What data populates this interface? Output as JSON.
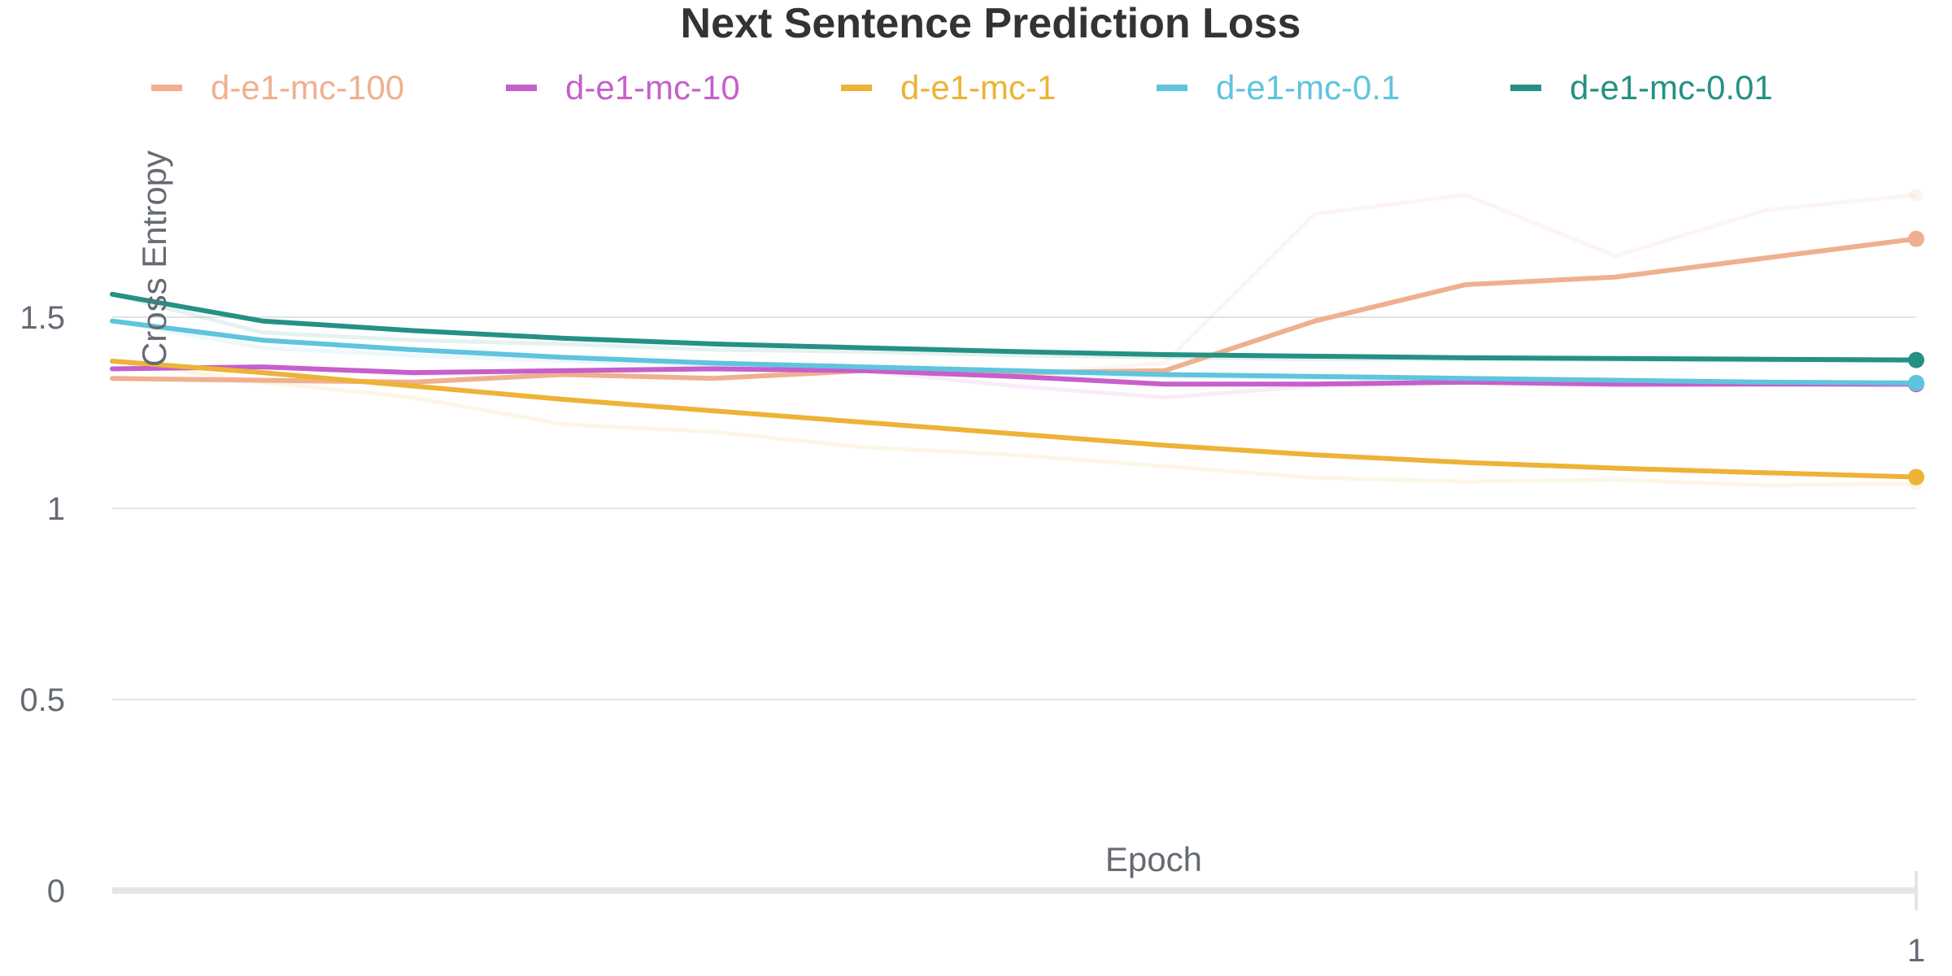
{
  "chart_data": {
    "type": "line",
    "title": "Next Sentence Prediction Loss",
    "xlabel": "Epoch",
    "ylabel": "Cross Entropy",
    "xlim": [
      0,
      1
    ],
    "ylim": [
      0,
      2
    ],
    "y_ticks": [
      "0",
      "0.5",
      "1",
      "1.5"
    ],
    "x_ticks": [
      "1"
    ],
    "grid": true,
    "legend_position": "top",
    "x": [
      0,
      0.0833,
      0.1667,
      0.25,
      0.3333,
      0.4167,
      0.5,
      0.5833,
      0.6667,
      0.75,
      0.8333,
      0.9167,
      1.0
    ],
    "series": [
      {
        "name": "d-e1-mc-100",
        "color": "#efb08f",
        "values": [
          1.34,
          1.335,
          1.33,
          1.35,
          1.34,
          1.36,
          1.355,
          1.36,
          1.49,
          1.585,
          1.605,
          1.655,
          1.705
        ],
        "raw": [
          1.34,
          1.33,
          1.33,
          1.36,
          1.34,
          1.36,
          1.35,
          1.38,
          1.77,
          1.82,
          1.66,
          1.78,
          1.82
        ]
      },
      {
        "name": "d-e1-mc-10",
        "color": "#c65fcb",
        "values": [
          1.365,
          1.37,
          1.355,
          1.36,
          1.365,
          1.36,
          1.345,
          1.325,
          1.325,
          1.33,
          1.325,
          1.325,
          1.325
        ],
        "raw": [
          1.365,
          1.37,
          1.35,
          1.36,
          1.37,
          1.36,
          1.32,
          1.29,
          1.32,
          1.33,
          1.32,
          1.325,
          1.32
        ]
      },
      {
        "name": "d-e1-mc-1",
        "color": "#ecb336",
        "values": [
          1.385,
          1.355,
          1.32,
          1.285,
          1.255,
          1.225,
          1.195,
          1.165,
          1.14,
          1.12,
          1.105,
          1.093,
          1.082
        ],
        "raw": [
          1.385,
          1.33,
          1.29,
          1.22,
          1.2,
          1.16,
          1.14,
          1.11,
          1.08,
          1.07,
          1.075,
          1.06,
          1.065
        ]
      },
      {
        "name": "d-e1-mc-0.1",
        "color": "#5fc4de",
        "values": [
          1.49,
          1.44,
          1.415,
          1.395,
          1.38,
          1.37,
          1.36,
          1.35,
          1.345,
          1.34,
          1.335,
          1.33,
          1.328
        ],
        "raw": [
          1.49,
          1.42,
          1.4,
          1.385,
          1.375,
          1.36,
          1.35,
          1.345,
          1.34,
          1.335,
          1.33,
          1.33,
          1.325
        ]
      },
      {
        "name": "d-e1-mc-0.01",
        "color": "#249184",
        "values": [
          1.56,
          1.49,
          1.465,
          1.445,
          1.43,
          1.42,
          1.41,
          1.402,
          1.398,
          1.394,
          1.392,
          1.39,
          1.388
        ],
        "raw": [
          1.56,
          1.46,
          1.44,
          1.43,
          1.415,
          1.41,
          1.4,
          1.395,
          1.39,
          1.39,
          1.388,
          1.386,
          1.385
        ]
      }
    ]
  }
}
